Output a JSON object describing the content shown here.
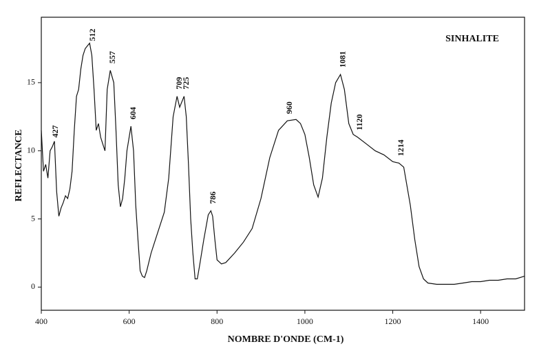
{
  "chart_data": {
    "type": "line",
    "title": "SINHALITE",
    "x_label": "NOMBRE D'ONDE (CM-1)",
    "y_label": "REFLECTANCE",
    "color": "#111111",
    "x": [
      400,
      405,
      410,
      415,
      420,
      425,
      430,
      435,
      440,
      445,
      450,
      455,
      460,
      465,
      470,
      475,
      480,
      485,
      490,
      495,
      500,
      505,
      510,
      515,
      520,
      525,
      530,
      535,
      540,
      545,
      550,
      557,
      565,
      570,
      575,
      580,
      585,
      590,
      595,
      604,
      610,
      615,
      620,
      625,
      630,
      635,
      640,
      650,
      660,
      670,
      680,
      690,
      700,
      709,
      715,
      725,
      730,
      735,
      740,
      745,
      750,
      755,
      760,
      770,
      780,
      786,
      790,
      795,
      800,
      810,
      820,
      840,
      860,
      880,
      900,
      920,
      940,
      960,
      980,
      990,
      1000,
      1010,
      1020,
      1030,
      1040,
      1050,
      1060,
      1070,
      1081,
      1090,
      1100,
      1110,
      1120,
      1140,
      1160,
      1180,
      1200,
      1214,
      1225,
      1240,
      1250,
      1260,
      1270,
      1280,
      1300,
      1320,
      1340,
      1360,
      1380,
      1400,
      1420,
      1440,
      1460,
      1480,
      1500
    ],
    "values": [
      11.5,
      8.5,
      9,
      8,
      10,
      10.3,
      10.7,
      7,
      5.2,
      5.8,
      6.2,
      6.7,
      6.5,
      7.2,
      8.5,
      11.5,
      14,
      14.5,
      16,
      17,
      17.5,
      17.7,
      17.9,
      17,
      14.5,
      11.5,
      12,
      11,
      10.5,
      10,
      14.5,
      15.9,
      15,
      11.5,
      7.5,
      5.9,
      6.5,
      8,
      10,
      11.8,
      10,
      6,
      3.5,
      1.2,
      0.8,
      0.7,
      1.2,
      2.5,
      3.5,
      4.5,
      5.5,
      8,
      12.5,
      14,
      13.2,
      14,
      12.5,
      9,
      5,
      2.5,
      0.6,
      0.6,
      1.5,
      3.5,
      5.3,
      5.6,
      5.2,
      3.5,
      2,
      1.7,
      1.8,
      2.5,
      3.3,
      4.3,
      6.5,
      9.5,
      11.5,
      12.2,
      12.3,
      12,
      11.2,
      9.5,
      7.5,
      6.6,
      8,
      11,
      13.5,
      15,
      15.6,
      14.5,
      12,
      11.2,
      11,
      10.5,
      10,
      9.7,
      9.2,
      9.1,
      8.8,
      6,
      3.5,
      1.5,
      0.6,
      0.3,
      0.2,
      0.2,
      0.2,
      0.3,
      0.4,
      0.4,
      0.5,
      0.5,
      0.6,
      0.6,
      0.8
    ],
    "peak_labels": [
      427,
      512,
      557,
      604,
      709,
      725,
      786,
      960,
      1081,
      1120,
      1214
    ],
    "xlim": [
      400,
      1500
    ],
    "ylim": [
      -1.7,
      19.8
    ],
    "xticks": [
      400,
      600,
      800,
      1000,
      1200,
      1400
    ],
    "yticks": [
      0,
      5,
      10,
      15
    ],
    "grid": false
  }
}
